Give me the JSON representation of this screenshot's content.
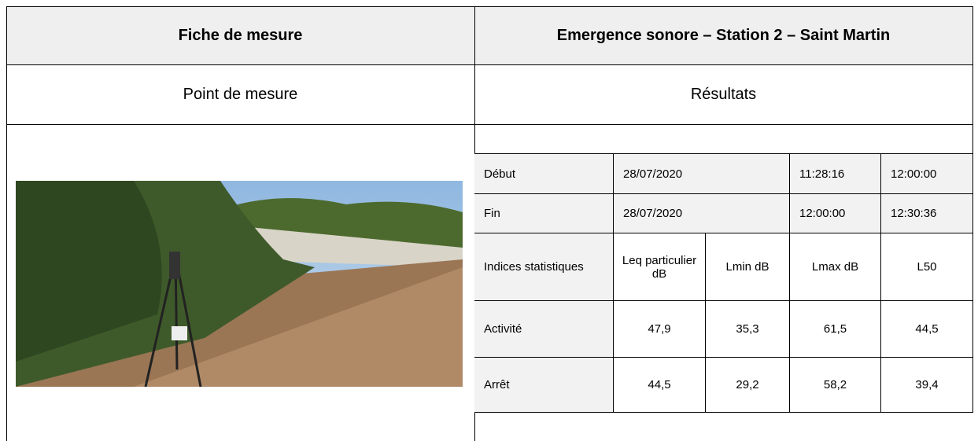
{
  "header": {
    "title": "Fiche de mesure",
    "subtitle": "Emergence sonore – Station 2 – Saint Martin"
  },
  "sections": {
    "left": "Point de mesure",
    "right": "Résultats"
  },
  "results": {
    "period_rows": [
      [
        "Début",
        "28/07/2020",
        "11:28:16",
        "12:00:00"
      ],
      [
        "Fin",
        "28/07/2020",
        "12:00:00",
        "12:30:36"
      ]
    ],
    "stats_header": [
      "Indices statistiques",
      "Leq particulier dB",
      "Lmin dB",
      "Lmax dB",
      "L50"
    ],
    "stats_rows": [
      [
        "Activité",
        "47,9",
        "35,3",
        "61,5",
        "44,5"
      ],
      [
        "Arrêt",
        "44,5",
        "29,2",
        "58,2",
        "39,4"
      ]
    ]
  }
}
